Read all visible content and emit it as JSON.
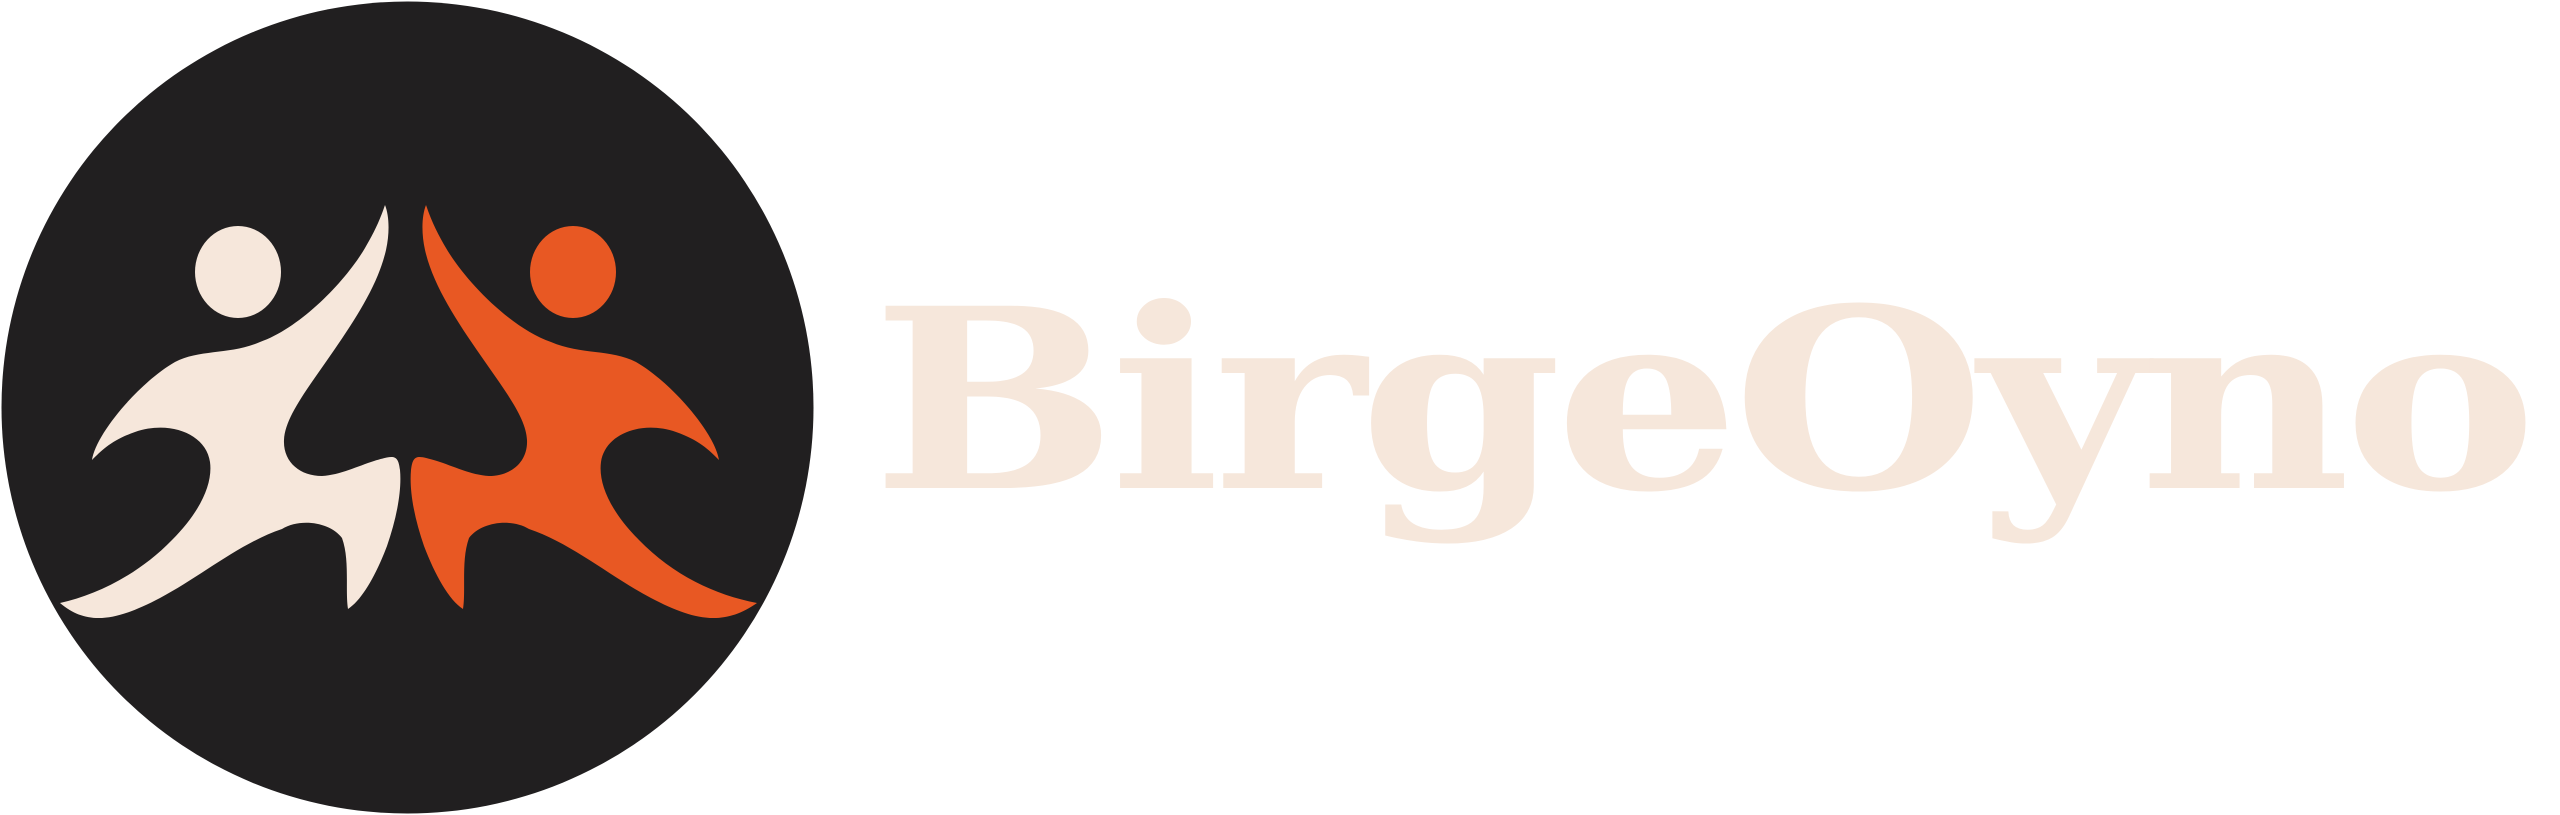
{
  "brand": {
    "name": "BirgeOyno",
    "colors": {
      "circle": "#211f20",
      "figure_left": "#f6e7db",
      "figure_right": "#e85823",
      "wordmark": "#f6e7db",
      "background": "#ffffff"
    },
    "icons": [
      "dancing-figure-left-icon",
      "dancing-figure-right-icon"
    ]
  }
}
